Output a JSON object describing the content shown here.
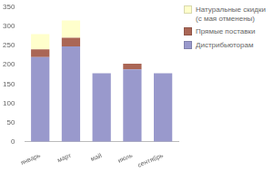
{
  "chart_data": {
    "type": "bar",
    "stacked": true,
    "categories": [
      "январь",
      "март",
      "май",
      "июль",
      "сентябрь"
    ],
    "series": [
      {
        "name": "Дистрибьюторам",
        "color": "#9999cc",
        "values": [
          220,
          248,
          178,
          188,
          178
        ]
      },
      {
        "name": "Прямые поставки",
        "color": "#aa6655",
        "values": [
          20,
          22,
          0,
          15,
          0
        ]
      },
      {
        "name": "Натуральные скидки\n(с мая отменены)",
        "color": "#ffffcc",
        "values": [
          40,
          45,
          0,
          0,
          0
        ]
      }
    ],
    "ylim": [
      0,
      350
    ],
    "yticks": [
      0,
      50,
      100,
      150,
      200,
      250,
      300,
      350
    ],
    "grid": false,
    "legend": "upper right"
  }
}
